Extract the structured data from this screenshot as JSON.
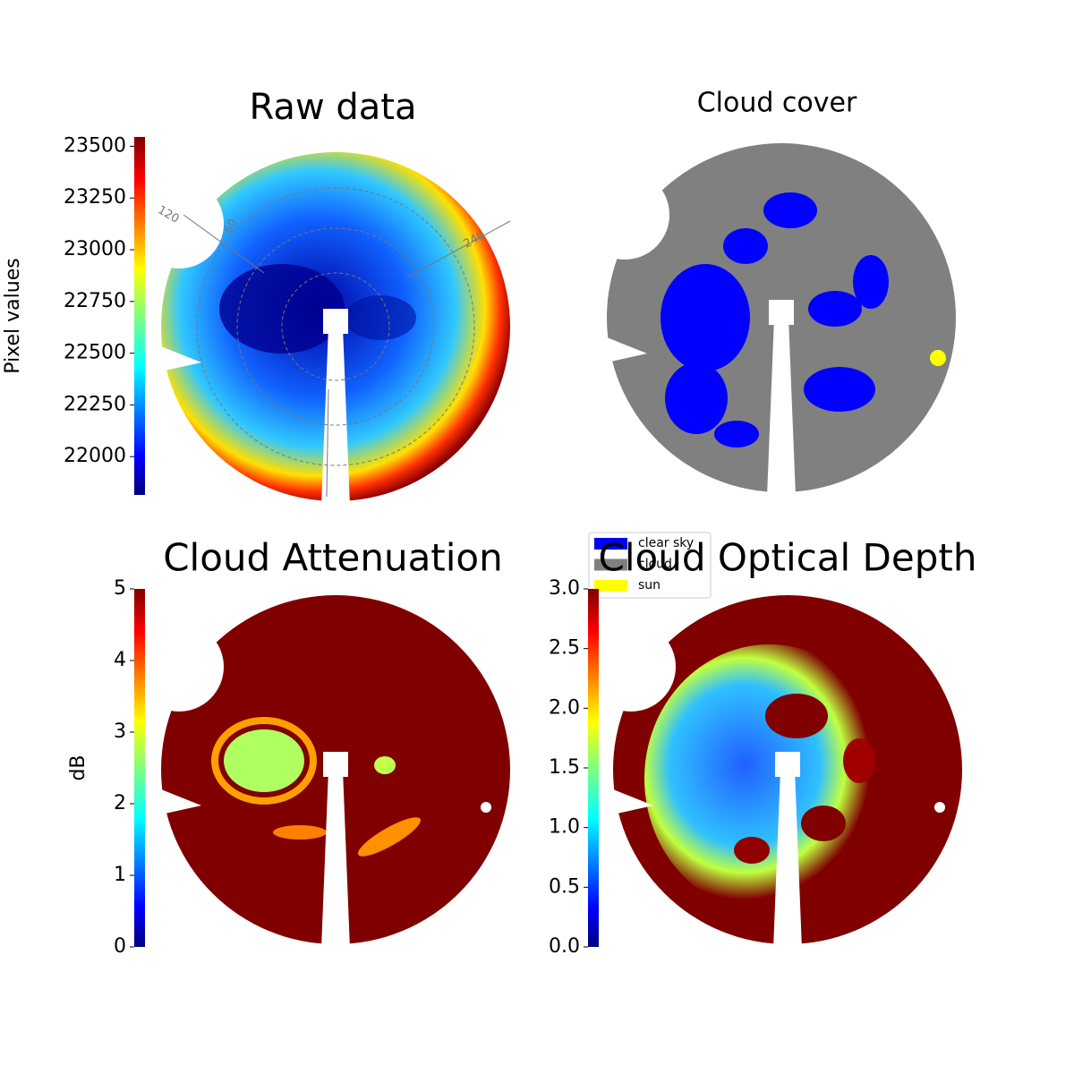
{
  "chart_data": [
    {
      "type": "heatmap",
      "title": "Raw data",
      "colorbar_label": "Pixel values",
      "colormap": "jet",
      "ylim": [
        21815,
        23545
      ],
      "yticks": [
        22000,
        22250,
        22500,
        22750,
        23000,
        23250,
        23500
      ],
      "annotations": [
        "120",
        "60",
        "240"
      ]
    },
    {
      "type": "classification",
      "title": "Cloud cover",
      "series": [
        {
          "name": "clear sky",
          "color": "#0000ff"
        },
        {
          "name": "cloud",
          "color": "#808080"
        },
        {
          "name": "sun",
          "color": "#ffff00"
        }
      ]
    },
    {
      "type": "heatmap",
      "title": "Cloud Attenuation",
      "colorbar_label": "dB",
      "colormap": "jet",
      "ylim": [
        0,
        5
      ],
      "yticks": [
        0,
        1,
        2,
        3,
        4,
        5
      ]
    },
    {
      "type": "heatmap",
      "title": "Cloud Optical Depth",
      "colormap": "jet",
      "ylim": [
        0,
        3
      ],
      "yticks": [
        {
          "value": 0,
          "label": "0.0"
        },
        {
          "value": 0.5,
          "label": "0.5"
        },
        {
          "value": 1,
          "label": "1.0"
        },
        {
          "value": 1.5,
          "label": "1.5"
        },
        {
          "value": 2,
          "label": "2.0"
        },
        {
          "value": 2.5,
          "label": "2.5"
        },
        {
          "value": 3,
          "label": "3.0"
        }
      ]
    }
  ]
}
